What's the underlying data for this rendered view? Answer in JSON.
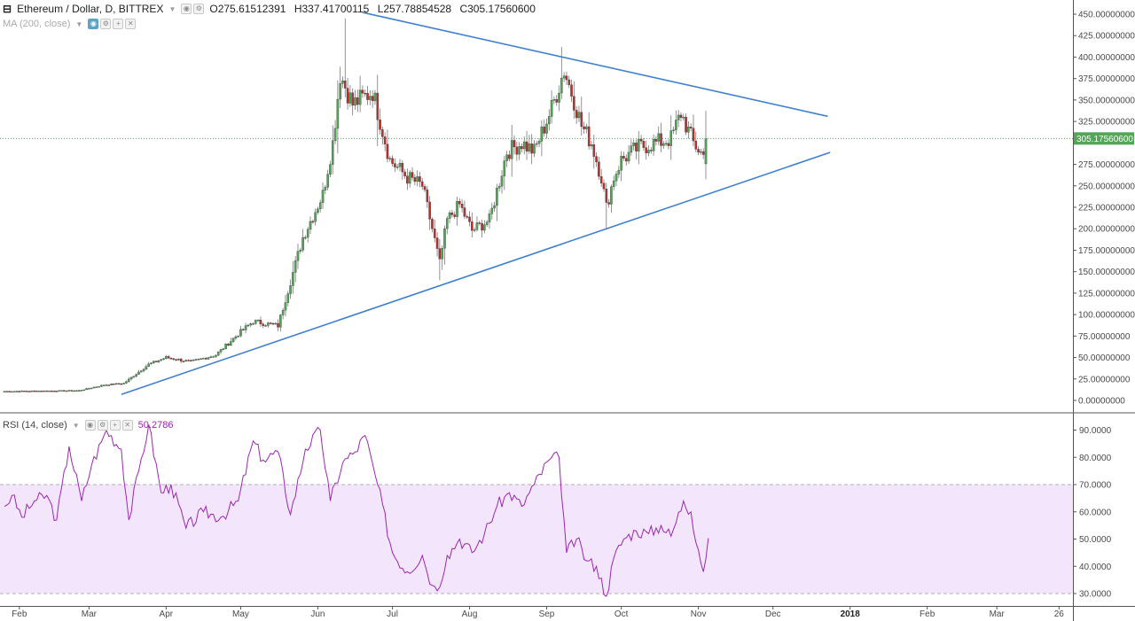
{
  "header": {
    "symbol": "Ethereum / Dollar, D, BITTREX",
    "open": "O275.61512391",
    "high": "H337.41700115",
    "low": "L257.78854528",
    "close": "C305.17560600",
    "ma_label": "MA (200, close)",
    "rsi_label": "RSI (14, close)",
    "rsi_value": "50.2786"
  },
  "colors": {
    "up": "#53a658",
    "down": "#bf2d2d",
    "trendline": "#3f7fd0",
    "rsi_line": "#9c27b0",
    "rsi_band": "#f3e5fb",
    "last_price_tag": "#53a658"
  },
  "chart_data": [
    {
      "type": "candlestick",
      "title": "Ethereum / Dollar, D, BITTREX",
      "ylim": [
        -10,
        455
      ],
      "y_ticks": [
        {
          "value": 450,
          "label": "450.00000000"
        },
        {
          "value": 425,
          "label": "425.00000000"
        },
        {
          "value": 400,
          "label": "400.00000000"
        },
        {
          "value": 375,
          "label": "375.00000000"
        },
        {
          "value": 350,
          "label": "350.00000000"
        },
        {
          "value": 325,
          "label": "325.00000000"
        },
        {
          "value": 275,
          "label": "275.00000000"
        },
        {
          "value": 250,
          "label": "250.00000000"
        },
        {
          "value": 225,
          "label": "225.00000000"
        },
        {
          "value": 200,
          "label": "200.00000000"
        },
        {
          "value": 175,
          "label": "175.00000000"
        },
        {
          "value": 150,
          "label": "150.00000000"
        },
        {
          "value": 125,
          "label": "125.00000000"
        },
        {
          "value": 100,
          "label": "100.00000000"
        },
        {
          "value": 75,
          "label": "75.00000000"
        },
        {
          "value": 50,
          "label": "50.00000000"
        },
        {
          "value": 25,
          "label": "25.00000000"
        },
        {
          "value": 0,
          "label": "0.00000000"
        }
      ],
      "last_price": {
        "value": 305.1756,
        "label": "305.17560600"
      },
      "x_labels": [
        {
          "day": 6,
          "label": "Feb"
        },
        {
          "day": 34,
          "label": "Mar"
        },
        {
          "day": 65,
          "label": "Apr"
        },
        {
          "day": 95,
          "label": "May"
        },
        {
          "day": 126,
          "label": "Jun"
        },
        {
          "day": 156,
          "label": "Jul"
        },
        {
          "day": 187,
          "label": "Aug"
        },
        {
          "day": 218,
          "label": "Sep"
        },
        {
          "day": 248,
          "label": "Oct"
        },
        {
          "day": 279,
          "label": "Nov"
        },
        {
          "day": 309,
          "label": "Dec"
        },
        {
          "day": 340,
          "label": "2018"
        },
        {
          "day": 371,
          "label": "Feb"
        },
        {
          "day": 399,
          "label": "Mar"
        },
        {
          "day": 424,
          "label": "26"
        }
      ],
      "anchors": [
        {
          "day": 0,
          "price": 10.6
        },
        {
          "day": 30,
          "price": 11.5
        },
        {
          "day": 40,
          "price": 18
        },
        {
          "day": 48,
          "price": 20
        },
        {
          "day": 58,
          "price": 42
        },
        {
          "day": 65,
          "price": 50
        },
        {
          "day": 75,
          "price": 45
        },
        {
          "day": 85,
          "price": 53
        },
        {
          "day": 95,
          "price": 80
        },
        {
          "day": 100,
          "price": 92
        },
        {
          "day": 110,
          "price": 87
        },
        {
          "day": 120,
          "price": 190
        },
        {
          "day": 128,
          "price": 240
        },
        {
          "day": 132,
          "price": 300
        },
        {
          "day": 135,
          "price": 380
        },
        {
          "day": 140,
          "price": 345
        },
        {
          "day": 148,
          "price": 360
        },
        {
          "day": 155,
          "price": 280
        },
        {
          "day": 162,
          "price": 260
        },
        {
          "day": 168,
          "price": 250
        },
        {
          "day": 172,
          "price": 200
        },
        {
          "day": 175,
          "price": 160
        },
        {
          "day": 178,
          "price": 210
        },
        {
          "day": 183,
          "price": 228
        },
        {
          "day": 188,
          "price": 198
        },
        {
          "day": 195,
          "price": 210
        },
        {
          "day": 202,
          "price": 290
        },
        {
          "day": 208,
          "price": 300
        },
        {
          "day": 213,
          "price": 290
        },
        {
          "day": 220,
          "price": 340
        },
        {
          "day": 225,
          "price": 385
        },
        {
          "day": 229,
          "price": 350
        },
        {
          "day": 232,
          "price": 320
        },
        {
          "day": 236,
          "price": 300
        },
        {
          "day": 240,
          "price": 260
        },
        {
          "day": 242,
          "price": 225
        },
        {
          "day": 245,
          "price": 260
        },
        {
          "day": 248,
          "price": 280
        },
        {
          "day": 255,
          "price": 295
        },
        {
          "day": 262,
          "price": 300
        },
        {
          "day": 268,
          "price": 305
        },
        {
          "day": 272,
          "price": 335
        },
        {
          "day": 277,
          "price": 300
        },
        {
          "day": 281,
          "price": 285
        },
        {
          "day": 282,
          "price": 305.18
        }
      ],
      "trendlines": [
        {
          "from": {
            "day": 144,
            "price": 452
          },
          "to": {
            "day": 331,
            "price": 331
          }
        },
        {
          "from": {
            "day": 47,
            "price": 7
          },
          "to": {
            "day": 332,
            "price": 289
          }
        }
      ]
    },
    {
      "type": "line",
      "title": "RSI (14, close)",
      "ylim": [
        26,
        94
      ],
      "y_ticks": [
        {
          "value": 90,
          "label": "90.0000"
        },
        {
          "value": 80,
          "label": "80.0000"
        },
        {
          "value": 70,
          "label": "70.0000"
        },
        {
          "value": 60,
          "label": "60.0000"
        },
        {
          "value": 50,
          "label": "50.0000"
        },
        {
          "value": 40,
          "label": "40.0000"
        },
        {
          "value": 30,
          "label": "30.0000"
        }
      ],
      "bands": {
        "upper": 70,
        "lower": 30
      },
      "anchors": [
        {
          "day": 0,
          "value": 62
        },
        {
          "day": 3,
          "value": 66
        },
        {
          "day": 7,
          "value": 58
        },
        {
          "day": 12,
          "value": 64
        },
        {
          "day": 17,
          "value": 66
        },
        {
          "day": 21,
          "value": 57
        },
        {
          "day": 26,
          "value": 84
        },
        {
          "day": 31,
          "value": 64
        },
        {
          "day": 35,
          "value": 77
        },
        {
          "day": 41,
          "value": 90
        },
        {
          "day": 47,
          "value": 83
        },
        {
          "day": 50,
          "value": 57
        },
        {
          "day": 54,
          "value": 75
        },
        {
          "day": 58,
          "value": 92
        },
        {
          "day": 63,
          "value": 67
        },
        {
          "day": 67,
          "value": 70
        },
        {
          "day": 73,
          "value": 54
        },
        {
          "day": 80,
          "value": 60
        },
        {
          "day": 87,
          "value": 58
        },
        {
          "day": 94,
          "value": 64
        },
        {
          "day": 100,
          "value": 86
        },
        {
          "day": 104,
          "value": 79
        },
        {
          "day": 110,
          "value": 82
        },
        {
          "day": 115,
          "value": 59
        },
        {
          "day": 121,
          "value": 83
        },
        {
          "day": 127,
          "value": 90
        },
        {
          "day": 131,
          "value": 64
        },
        {
          "day": 136,
          "value": 78
        },
        {
          "day": 141,
          "value": 82
        },
        {
          "day": 145,
          "value": 88
        },
        {
          "day": 150,
          "value": 70
        },
        {
          "day": 156,
          "value": 45
        },
        {
          "day": 162,
          "value": 38
        },
        {
          "day": 168,
          "value": 44
        },
        {
          "day": 172,
          "value": 33
        },
        {
          "day": 174,
          "value": 31
        },
        {
          "day": 178,
          "value": 44
        },
        {
          "day": 183,
          "value": 50
        },
        {
          "day": 188,
          "value": 45
        },
        {
          "day": 193,
          "value": 52
        },
        {
          "day": 198,
          "value": 62
        },
        {
          "day": 203,
          "value": 67
        },
        {
          "day": 208,
          "value": 62
        },
        {
          "day": 213,
          "value": 70
        },
        {
          "day": 219,
          "value": 79
        },
        {
          "day": 223,
          "value": 80
        },
        {
          "day": 226,
          "value": 45
        },
        {
          "day": 230,
          "value": 50
        },
        {
          "day": 234,
          "value": 42
        },
        {
          "day": 238,
          "value": 40
        },
        {
          "day": 242,
          "value": 29
        },
        {
          "day": 245,
          "value": 43
        },
        {
          "day": 249,
          "value": 50
        },
        {
          "day": 254,
          "value": 53
        },
        {
          "day": 259,
          "value": 52
        },
        {
          "day": 264,
          "value": 55
        },
        {
          "day": 268,
          "value": 51
        },
        {
          "day": 273,
          "value": 64
        },
        {
          "day": 276,
          "value": 60
        },
        {
          "day": 279,
          "value": 46
        },
        {
          "day": 281,
          "value": 38
        },
        {
          "day": 283,
          "value": 50.28
        }
      ]
    }
  ]
}
